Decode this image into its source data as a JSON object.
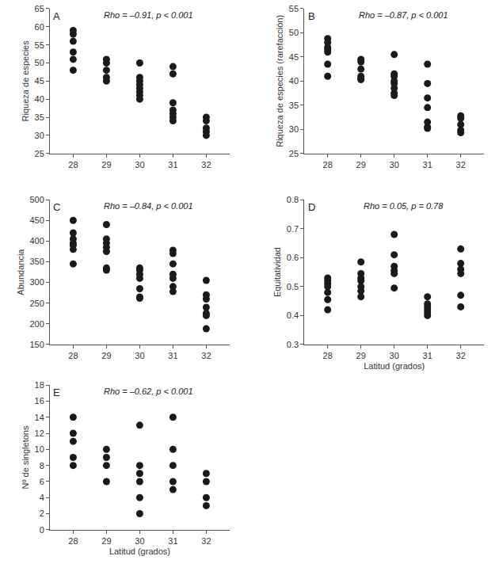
{
  "chart_data": [
    {
      "type": "scatter",
      "title": "A",
      "annotations": [
        "Rho = –0.91, p < 0.001"
      ],
      "ylabel": "Riqueza de especies",
      "color": "#1a1a1a",
      "marker": "circle",
      "grid": false,
      "x": [
        28,
        28,
        28,
        28,
        28,
        28,
        29,
        29,
        29,
        29,
        29,
        30,
        30,
        30,
        30,
        30,
        30,
        30,
        30,
        31,
        31,
        31,
        31,
        31,
        31,
        31,
        32,
        32,
        32,
        32,
        32
      ],
      "values": [
        59,
        58,
        56,
        53,
        51,
        48,
        51,
        50,
        48,
        46,
        45,
        50,
        46,
        45,
        44,
        43,
        42,
        41,
        40,
        49,
        47,
        39,
        37,
        36,
        35,
        34,
        35,
        34,
        32,
        31,
        30
      ],
      "xlim": [
        27.3,
        32.7
      ],
      "xticks": [
        28,
        29,
        30,
        31,
        32
      ],
      "ylim": [
        25,
        65
      ],
      "yticks": [
        25,
        30,
        35,
        40,
        45,
        50,
        55,
        60,
        65
      ]
    },
    {
      "type": "scatter",
      "title": "B",
      "annotations": [
        "Rho = –0.87, p < 0.001"
      ],
      "ylabel": "Riqueza de especies (rarefacción)",
      "color": "#1a1a1a",
      "marker": "circle",
      "grid": false,
      "x": [
        28,
        28,
        28,
        28,
        28,
        28,
        28,
        29,
        29,
        29,
        29,
        29,
        29,
        30,
        30,
        30,
        30,
        30,
        30,
        30,
        30,
        31,
        31,
        31,
        31,
        31,
        31,
        31,
        32,
        32,
        32,
        32,
        32
      ],
      "values": [
        48.8,
        48,
        47,
        46.5,
        46,
        43.5,
        41,
        44.5,
        44,
        42.5,
        41,
        40.5,
        40.3,
        45.5,
        41.5,
        41,
        40,
        39.5,
        38.5,
        37.5,
        37,
        43.5,
        39.5,
        36.5,
        34.5,
        31.5,
        30.5,
        30.2,
        32.8,
        32.3,
        31,
        29.8,
        29.3
      ],
      "xlim": [
        27.3,
        32.7
      ],
      "xticks": [
        28,
        29,
        30,
        31,
        32
      ],
      "ylim": [
        25,
        55
      ],
      "yticks": [
        25,
        30,
        35,
        40,
        45,
        50,
        55
      ]
    },
    {
      "type": "scatter",
      "title": "C",
      "annotations": [
        "Rho = –0.84, p < 0.001"
      ],
      "ylabel": "Abundancia",
      "color": "#1a1a1a",
      "marker": "circle",
      "grid": false,
      "x": [
        28,
        28,
        28,
        28,
        28,
        28,
        28,
        29,
        29,
        29,
        29,
        29,
        29,
        29,
        30,
        30,
        30,
        30,
        30,
        30,
        30,
        31,
        31,
        31,
        31,
        31,
        31,
        31,
        32,
        32,
        32,
        32,
        32,
        32,
        32
      ],
      "values": [
        450,
        420,
        405,
        395,
        390,
        380,
        345,
        440,
        405,
        395,
        385,
        375,
        335,
        330,
        335,
        330,
        320,
        310,
        285,
        265,
        262,
        378,
        370,
        345,
        320,
        310,
        290,
        278,
        305,
        270,
        260,
        240,
        225,
        220,
        188
      ],
      "xlim": [
        27.3,
        32.7
      ],
      "xticks": [
        28,
        29,
        30,
        31,
        32
      ],
      "ylim": [
        150,
        500
      ],
      "yticks": [
        150,
        200,
        250,
        300,
        350,
        400,
        450,
        500
      ]
    },
    {
      "type": "scatter",
      "title": "D",
      "annotations": [
        "Rho = 0.05, p = 0.78"
      ],
      "ylabel": "Equitatividad",
      "xlabel": "Latitud (grados)",
      "color": "#1a1a1a",
      "marker": "circle",
      "grid": false,
      "x": [
        28,
        28,
        28,
        28,
        28,
        28,
        28,
        29,
        29,
        29,
        29,
        29,
        29,
        29,
        30,
        30,
        30,
        30,
        30,
        30,
        31,
        31,
        31,
        31,
        31,
        31,
        32,
        32,
        32,
        32,
        32,
        32
      ],
      "values": [
        0.53,
        0.52,
        0.51,
        0.5,
        0.48,
        0.455,
        0.42,
        0.585,
        0.545,
        0.53,
        0.52,
        0.5,
        0.485,
        0.465,
        0.68,
        0.61,
        0.57,
        0.555,
        0.545,
        0.495,
        0.465,
        0.44,
        0.43,
        0.42,
        0.41,
        0.4,
        0.63,
        0.58,
        0.56,
        0.545,
        0.47,
        0.43
      ],
      "xlim": [
        27.3,
        32.7
      ],
      "xticks": [
        28,
        29,
        30,
        31,
        32
      ],
      "ylim": [
        0.3,
        0.8
      ],
      "yticks": [
        0.3,
        0.4,
        0.5,
        0.6,
        0.7,
        0.8
      ]
    },
    {
      "type": "scatter",
      "title": "E",
      "annotations": [
        "Rho = –0.62, p < 0.001"
      ],
      "ylabel": "Nº de singletons",
      "xlabel": "Latitud (grados)",
      "color": "#1a1a1a",
      "marker": "circle",
      "grid": false,
      "x": [
        28,
        28,
        28,
        28,
        28,
        29,
        29,
        29,
        29,
        30,
        30,
        30,
        30,
        30,
        30,
        31,
        31,
        31,
        31,
        31,
        32,
        32,
        32,
        32
      ],
      "values": [
        14,
        12,
        11,
        9,
        8,
        10,
        9,
        8,
        6,
        13,
        8,
        7,
        6,
        4,
        2,
        14,
        10,
        8,
        6,
        5,
        7,
        6,
        4,
        3
      ],
      "xlim": [
        27.3,
        32.7
      ],
      "xticks": [
        28,
        29,
        30,
        31,
        32
      ],
      "ylim": [
        0,
        18
      ],
      "yticks": [
        0,
        2,
        4,
        6,
        8,
        10,
        12,
        14,
        16,
        18
      ]
    }
  ]
}
